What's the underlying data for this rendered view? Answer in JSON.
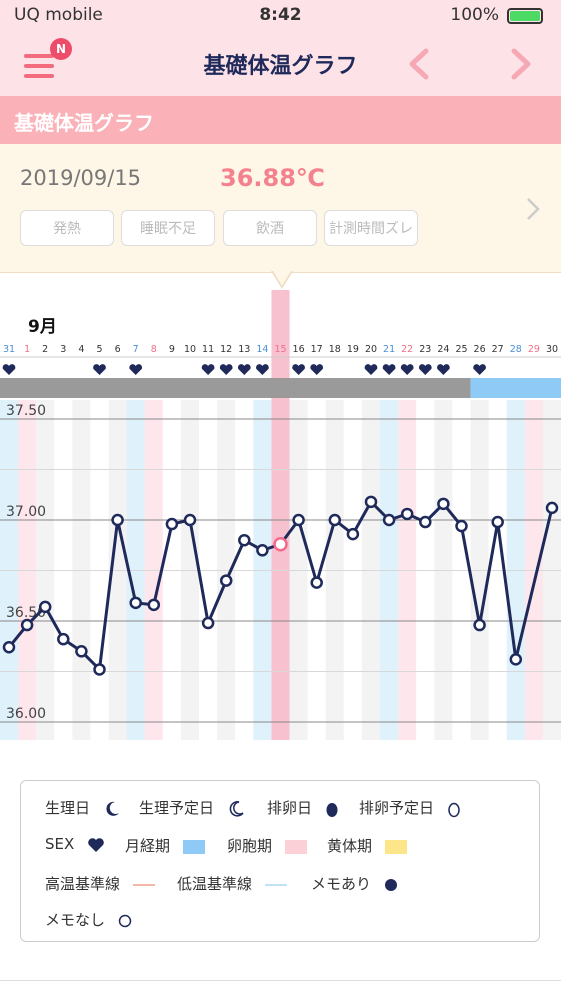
{
  "status_bar": {
    "carrier": "UQ mobile",
    "time": "8:42",
    "battery": "100%",
    "battery_level": 1.0
  },
  "header": {
    "title": "基礎体温グラフ",
    "menu_badge": "N",
    "prev_icon": "chevron-left-icon",
    "next_icon": "chevron-right-icon"
  },
  "section": {
    "title": "基礎体温グラフ"
  },
  "detail": {
    "date": "2019/09/15",
    "temperature": "36.88℃",
    "tags": [
      "発熱",
      "睡眠不足",
      "飲酒",
      "計測時間ズレ"
    ]
  },
  "chart_data": {
    "type": "line",
    "month_label": "9月",
    "days": [
      "31",
      "1",
      "2",
      "3",
      "4",
      "5",
      "6",
      "7",
      "8",
      "9",
      "10",
      "11",
      "12",
      "13",
      "14",
      "15",
      "16",
      "17",
      "18",
      "19",
      "20",
      "21",
      "22",
      "23",
      "24",
      "25",
      "26",
      "27",
      "28",
      "29",
      "30"
    ],
    "values": [
      36.37,
      36.48,
      36.57,
      36.41,
      36.35,
      36.26,
      37.0,
      36.59,
      36.58,
      36.98,
      37.0,
      36.49,
      36.7,
      36.9,
      36.85,
      36.88,
      37.0,
      36.69,
      37.0,
      36.93,
      37.09,
      37.0,
      37.03,
      36.99,
      37.08,
      36.97,
      36.48,
      36.99,
      36.31,
      null,
      37.06
    ],
    "selected_index": 15,
    "y_ticks": [
      "36.00",
      "36.50",
      "37.00",
      "37.50"
    ],
    "ylim": [
      35.97,
      37.64
    ],
    "sex_days": [
      "31",
      "5",
      "7",
      "11",
      "12",
      "13",
      "14",
      "16",
      "17",
      "20",
      "21",
      "22",
      "23",
      "24",
      "26"
    ],
    "period_predicted_start": "26",
    "line_color": "#1f2a5a",
    "selected_color": "#f26b8a",
    "period_bar_color": "#9a9a9a",
    "predicted_bar_color": "#8fc9f5",
    "high_base_color": "#f7d0d5",
    "low_base_color": "#cde9f7"
  },
  "legend": {
    "items": [
      {
        "label": "生理日",
        "icon": "moon-filled-icon"
      },
      {
        "label": "生理予定日",
        "icon": "moon-outline-icon"
      },
      {
        "label": "排卵日",
        "icon": "egg-filled-icon"
      },
      {
        "label": "排卵予定日",
        "icon": "egg-outline-icon"
      },
      {
        "label": "SEX",
        "icon": "heart-icon"
      },
      {
        "label": "月経期",
        "color": "#8fc9f5"
      },
      {
        "label": "卵胞期",
        "color": "#fbd0d6"
      },
      {
        "label": "黄体期",
        "color": "#fde68a"
      },
      {
        "label": "高温基準線",
        "color": "#f2b7a8"
      },
      {
        "label": "低温基準線",
        "color": "#bfe3f5"
      },
      {
        "label": "メモあり",
        "icon": "memo-filled-icon"
      },
      {
        "label": "メモなし",
        "icon": "memo-empty-icon"
      }
    ]
  }
}
